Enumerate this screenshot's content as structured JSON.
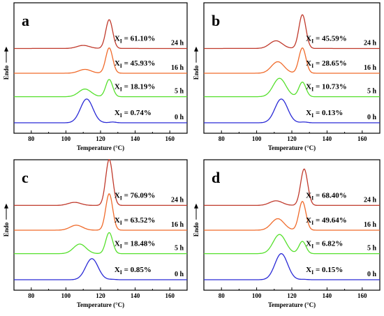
{
  "chart_data": [
    {
      "type": "line",
      "panel": "a",
      "xlabel": "Temperature (°C)",
      "ylabel": "Endo",
      "xlim": [
        70,
        170
      ],
      "xticks": [
        80,
        100,
        120,
        140,
        160
      ],
      "series": [
        {
          "time": "24 h",
          "label": "X_I = 61.10%",
          "color": "#c0392b",
          "peak1": {
            "x": 110,
            "h": 0.08
          },
          "peak2": {
            "x": 125,
            "h": 0.75
          }
        },
        {
          "time": "16 h",
          "label": "X_I = 45.93%",
          "color": "#f06a2a",
          "peak1": {
            "x": 111,
            "h": 0.1
          },
          "peak2": {
            "x": 125,
            "h": 0.66
          }
        },
        {
          "time": "5 h",
          "label": "X_I = 18.19%",
          "color": "#55e02c",
          "peak1": {
            "x": 111,
            "h": 0.2
          },
          "peak2": {
            "x": 125,
            "h": 0.45
          }
        },
        {
          "time": "0 h",
          "label": "X_I = 0.74%",
          "color": "#2a2ad6",
          "peak1": {
            "x": 112,
            "h": 0.62
          },
          "peak2": {
            "x": 127,
            "h": 0.02
          }
        }
      ]
    },
    {
      "type": "line",
      "panel": "b",
      "xlabel": "Temperature (°C)",
      "ylabel": "Endo",
      "xlim": [
        70,
        170
      ],
      "xticks": [
        80,
        100,
        120,
        140,
        160
      ],
      "series": [
        {
          "time": "24 h",
          "label": "X_I = 45.59%",
          "color": "#c0392b",
          "peak1": {
            "x": 111,
            "h": 0.2
          },
          "peak2": {
            "x": 126,
            "h": 0.88
          }
        },
        {
          "time": "16 h",
          "label": "X_I = 28.65%",
          "color": "#f06a2a",
          "peak1": {
            "x": 112,
            "h": 0.3
          },
          "peak2": {
            "x": 126,
            "h": 0.66
          }
        },
        {
          "time": "5 h",
          "label": "X_I = 10.73%",
          "color": "#55e02c",
          "peak1": {
            "x": 113,
            "h": 0.48
          },
          "peak2": {
            "x": 126,
            "h": 0.38
          }
        },
        {
          "time": "0 h",
          "label": "X_I = 0.13%",
          "color": "#2a2ad6",
          "peak1": {
            "x": 114,
            "h": 0.62
          },
          "peak2": {
            "x": 127,
            "h": 0.02
          }
        }
      ]
    },
    {
      "type": "line",
      "panel": "c",
      "xlabel": "Temperature (°C)",
      "ylabel": "Endo",
      "xlim": [
        70,
        170
      ],
      "xticks": [
        80,
        100,
        120,
        140,
        160
      ],
      "series": [
        {
          "time": "24 h",
          "label": "X_I = 76.09%",
          "color": "#c0392b",
          "peak1": {
            "x": 105,
            "h": 0.08
          },
          "peak2": {
            "x": 125,
            "h": 1.2
          }
        },
        {
          "time": "16 h",
          "label": "X_I = 63.52%",
          "color": "#f06a2a",
          "peak1": {
            "x": 106,
            "h": 0.13
          },
          "peak2": {
            "x": 125,
            "h": 0.95
          }
        },
        {
          "time": "5 h",
          "label": "X_I = 18.48%",
          "color": "#55e02c",
          "peak1": {
            "x": 108,
            "h": 0.25
          },
          "peak2": {
            "x": 125,
            "h": 0.55
          }
        },
        {
          "time": "0 h",
          "label": "X_I = 0.85%",
          "color": "#2a2ad6",
          "peak1": {
            "x": 115,
            "h": 0.55
          },
          "peak2": {
            "x": 127,
            "h": 0.01
          }
        }
      ]
    },
    {
      "type": "line",
      "panel": "d",
      "xlabel": "Temperature (°C)",
      "ylabel": "Endo",
      "xlim": [
        70,
        170
      ],
      "xticks": [
        80,
        100,
        120,
        140,
        160
      ],
      "series": [
        {
          "time": "24 h",
          "label": "X_I = 68.40%",
          "color": "#c0392b",
          "peak1": {
            "x": 111,
            "h": 0.12
          },
          "peak2": {
            "x": 127,
            "h": 0.95
          }
        },
        {
          "time": "16 h",
          "label": "X_I = 49.64%",
          "color": "#f06a2a",
          "peak1": {
            "x": 112,
            "h": 0.3
          },
          "peak2": {
            "x": 126,
            "h": 0.75
          }
        },
        {
          "time": "5 h",
          "label": "X_I = 6.82%",
          "color": "#55e02c",
          "peak1": {
            "x": 113,
            "h": 0.5
          },
          "peak2": {
            "x": 126,
            "h": 0.32
          }
        },
        {
          "time": "0 h",
          "label": "X_I = 0.15%",
          "color": "#2a2ad6",
          "peak1": {
            "x": 114,
            "h": 0.68
          },
          "peak2": {
            "x": 127,
            "h": 0.01
          }
        }
      ]
    }
  ]
}
